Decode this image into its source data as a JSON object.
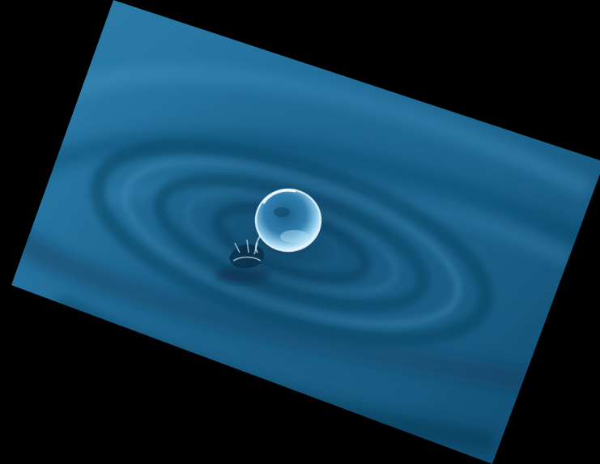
{
  "scene": {
    "subject": "water-droplet-splash",
    "colors": {
      "background": "#000000",
      "water_deep": "#0b3d5c",
      "water_mid": "#1f6e9a",
      "water_light": "#3f93c2",
      "highlight": "#d8f0ff"
    }
  }
}
